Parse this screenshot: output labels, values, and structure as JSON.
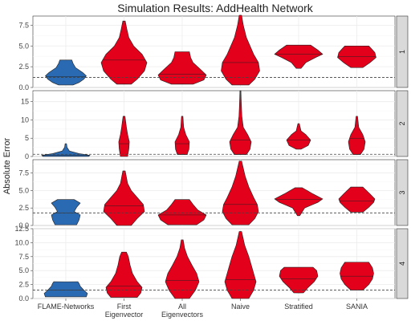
{
  "chart_data": {
    "type": "violin",
    "title": "Simulation Results: AddHealth Network",
    "ylabel": "Absolute Error",
    "xlabel": "",
    "categories": [
      "FLAME-Networks",
      "First Eigenvector",
      "All Eigenvectors",
      "Naive",
      "Stratified",
      "SANIA"
    ],
    "category_labels": [
      [
        "FLAME-Networks"
      ],
      [
        "First",
        "Eigenvector"
      ],
      [
        "All",
        "Eigenvectors"
      ],
      [
        "Naive"
      ],
      [
        "Stratified"
      ],
      [
        "SANIA"
      ]
    ],
    "colors": {
      "blue": "#2a6ab3",
      "red": "#e3001b",
      "strip": "#d9d9d9"
    },
    "panels": [
      {
        "label": "1",
        "ylim": [
          0,
          8.6
        ],
        "yticks": [
          0.0,
          2.5,
          5.0,
          7.5
        ],
        "ytick_labels": [
          "0.0",
          "2.5",
          "5.0",
          "7.5"
        ],
        "reference": 1.2,
        "violins": [
          {
            "category": "FLAME-Networks",
            "color": "blue",
            "min": 0.3,
            "max": 3.3,
            "median": 1.3,
            "shape": [
              [
                0.3,
                0.3
              ],
              [
                0.6,
                0.55
              ],
              [
                1.0,
                0.75
              ],
              [
                1.4,
                0.85
              ],
              [
                1.8,
                0.7
              ],
              [
                2.4,
                0.4
              ],
              [
                2.9,
                0.3
              ],
              [
                3.3,
                0.25
              ]
            ]
          },
          {
            "category": "First Eigenvector",
            "color": "red",
            "min": 0.4,
            "max": 8.0,
            "median": 3.3,
            "shape": [
              [
                0.4,
                0.3
              ],
              [
                1.0,
                0.55
              ],
              [
                2.0,
                0.85
              ],
              [
                3.0,
                0.95
              ],
              [
                4.0,
                0.75
              ],
              [
                5.0,
                0.4
              ],
              [
                6.0,
                0.2
              ],
              [
                7.0,
                0.12
              ],
              [
                8.0,
                0.05
              ]
            ]
          },
          {
            "category": "All Eigenvectors",
            "color": "red",
            "min": 0.4,
            "max": 4.3,
            "median": 1.6,
            "shape": [
              [
                0.4,
                0.45
              ],
              [
                0.9,
                0.9
              ],
              [
                1.5,
                1.0
              ],
              [
                2.2,
                0.75
              ],
              [
                3.0,
                0.45
              ],
              [
                3.6,
                0.35
              ],
              [
                4.3,
                0.3
              ]
            ]
          },
          {
            "category": "Naive",
            "color": "red",
            "min": 0.3,
            "max": 8.7,
            "median": 3.0,
            "shape": [
              [
                0.3,
                0.35
              ],
              [
                1.0,
                0.6
              ],
              [
                2.0,
                0.8
              ],
              [
                3.0,
                0.75
              ],
              [
                4.0,
                0.55
              ],
              [
                5.0,
                0.4
              ],
              [
                6.0,
                0.25
              ],
              [
                7.5,
                0.12
              ],
              [
                8.7,
                0.05
              ]
            ]
          },
          {
            "category": "Stratified",
            "color": "red",
            "min": 2.3,
            "max": 5.1,
            "median": 4.0,
            "shape": [
              [
                2.3,
                0.1
              ],
              [
                3.0,
                0.3
              ],
              [
                3.6,
                0.7
              ],
              [
                4.0,
                1.0
              ],
              [
                4.5,
                0.8
              ],
              [
                5.1,
                0.5
              ]
            ]
          },
          {
            "category": "SANIA",
            "color": "red",
            "min": 2.4,
            "max": 5.0,
            "median": 3.7,
            "shape": [
              [
                2.4,
                0.25
              ],
              [
                3.0,
                0.55
              ],
              [
                3.6,
                0.8
              ],
              [
                4.2,
                0.75
              ],
              [
                4.7,
                0.6
              ],
              [
                5.0,
                0.5
              ]
            ]
          }
        ]
      },
      {
        "label": "2",
        "ylim": [
          0,
          18
        ],
        "yticks": [
          0,
          5,
          10,
          15
        ],
        "ytick_labels": [
          "0",
          "5",
          "10",
          "15"
        ],
        "reference": 0.6,
        "violins": [
          {
            "category": "FLAME-Networks",
            "color": "blue",
            "min": 0.0,
            "max": 3.5,
            "median": 0.3,
            "shape": [
              [
                0.0,
                0.95
              ],
              [
                0.3,
                1.0
              ],
              [
                0.8,
                0.55
              ],
              [
                1.5,
                0.15
              ],
              [
                2.5,
                0.05
              ],
              [
                3.5,
                0.03
              ]
            ]
          },
          {
            "category": "First Eigenvector",
            "color": "red",
            "min": 0.0,
            "max": 11.0,
            "median": 3.5,
            "shape": [
              [
                0.0,
                0.15
              ],
              [
                2.0,
                0.2
              ],
              [
                4.0,
                0.22
              ],
              [
                6.0,
                0.15
              ],
              [
                8.0,
                0.1
              ],
              [
                11.0,
                0.04
              ]
            ]
          },
          {
            "category": "All Eigenvectors",
            "color": "red",
            "min": 0.5,
            "max": 11.0,
            "median": 3.5,
            "shape": [
              [
                0.5,
                0.2
              ],
              [
                2.0,
                0.28
              ],
              [
                4.0,
                0.3
              ],
              [
                6.0,
                0.15
              ],
              [
                8.0,
                0.06
              ],
              [
                11.0,
                0.03
              ]
            ]
          },
          {
            "category": "Naive",
            "color": "red",
            "min": 0.5,
            "max": 18.0,
            "median": 4.5,
            "shape": [
              [
                0.5,
                0.25
              ],
              [
                2.0,
                0.4
              ],
              [
                4.0,
                0.45
              ],
              [
                6.0,
                0.3
              ],
              [
                8.0,
                0.12
              ],
              [
                11.0,
                0.06
              ],
              [
                14.0,
                0.04
              ],
              [
                18.0,
                0.02
              ]
            ]
          },
          {
            "category": "Stratified",
            "color": "red",
            "min": 2.0,
            "max": 9.0,
            "median": 4.5,
            "shape": [
              [
                2.0,
                0.1
              ],
              [
                3.0,
                0.4
              ],
              [
                4.5,
                0.5
              ],
              [
                6.0,
                0.3
              ],
              [
                7.0,
                0.1
              ],
              [
                9.0,
                0.03
              ]
            ]
          },
          {
            "category": "SANIA",
            "color": "red",
            "min": 0.5,
            "max": 11.0,
            "median": 5.0,
            "shape": [
              [
                0.5,
                0.15
              ],
              [
                2.0,
                0.3
              ],
              [
                4.0,
                0.35
              ],
              [
                6.0,
                0.25
              ],
              [
                8.0,
                0.08
              ],
              [
                11.0,
                0.03
              ]
            ]
          }
        ]
      },
      {
        "label": "3",
        "ylim": [
          0,
          9.4
        ],
        "yticks": [
          0.0,
          2.5,
          5.0,
          7.5
        ],
        "ytick_labels": [
          "0.0",
          "2.5",
          "5.0",
          "7.5"
        ],
        "reference": 1.8,
        "violins": [
          {
            "category": "FLAME-Networks",
            "color": "blue",
            "min": 0.1,
            "max": 3.7,
            "median": 1.8,
            "shape": [
              [
                0.1,
                0.45
              ],
              [
                0.8,
                0.55
              ],
              [
                1.5,
                0.6
              ],
              [
                2.0,
                0.35
              ],
              [
                2.6,
                0.45
              ],
              [
                3.2,
                0.6
              ],
              [
                3.7,
                0.35
              ]
            ]
          },
          {
            "category": "First Eigenvector",
            "color": "red",
            "min": 0.0,
            "max": 7.8,
            "median": 2.8,
            "shape": [
              [
                0.0,
                0.3
              ],
              [
                1.0,
                0.55
              ],
              [
                2.0,
                0.85
              ],
              [
                3.0,
                0.8
              ],
              [
                4.0,
                0.55
              ],
              [
                5.0,
                0.3
              ],
              [
                6.0,
                0.15
              ],
              [
                7.8,
                0.05
              ]
            ]
          },
          {
            "category": "All Eigenvectors",
            "color": "red",
            "min": 0.1,
            "max": 3.7,
            "median": 1.5,
            "shape": [
              [
                0.1,
                0.6
              ],
              [
                0.8,
                0.9
              ],
              [
                1.5,
                1.0
              ],
              [
                2.2,
                0.65
              ],
              [
                3.0,
                0.45
              ],
              [
                3.7,
                0.3
              ]
            ]
          },
          {
            "category": "Naive",
            "color": "red",
            "min": 0.1,
            "max": 9.2,
            "median": 3.0,
            "shape": [
              [
                0.1,
                0.35
              ],
              [
                1.0,
                0.6
              ],
              [
                2.0,
                0.75
              ],
              [
                3.0,
                0.7
              ],
              [
                4.0,
                0.55
              ],
              [
                5.5,
                0.35
              ],
              [
                7.0,
                0.2
              ],
              [
                9.2,
                0.05
              ]
            ]
          },
          {
            "category": "Stratified",
            "color": "red",
            "min": 1.4,
            "max": 5.4,
            "median": 3.7,
            "shape": [
              [
                1.4,
                0.05
              ],
              [
                2.5,
                0.25
              ],
              [
                3.3,
                0.8
              ],
              [
                3.8,
                1.0
              ],
              [
                4.5,
                0.6
              ],
              [
                5.4,
                0.15
              ]
            ]
          },
          {
            "category": "SANIA",
            "color": "red",
            "min": 1.9,
            "max": 5.5,
            "median": 3.5,
            "shape": [
              [
                1.9,
                0.25
              ],
              [
                2.6,
                0.5
              ],
              [
                3.3,
                0.7
              ],
              [
                3.8,
                0.75
              ],
              [
                4.5,
                0.55
              ],
              [
                5.5,
                0.25
              ]
            ]
          }
        ]
      },
      {
        "label": "4",
        "ylim": [
          0,
          12.5
        ],
        "yticks": [
          0.0,
          2.5,
          5.0,
          7.5,
          10.0,
          12.5
        ],
        "ytick_labels": [
          "0.0",
          "2.5",
          "5.0",
          "7.5",
          "10.0",
          "12.5"
        ],
        "reference": 1.5,
        "violins": [
          {
            "category": "FLAME-Networks",
            "color": "blue",
            "min": 0.3,
            "max": 3.0,
            "median": 1.5,
            "shape": [
              [
                0.3,
                0.85
              ],
              [
                0.9,
                0.9
              ],
              [
                1.5,
                0.75
              ],
              [
                2.2,
                0.6
              ],
              [
                2.7,
                0.55
              ],
              [
                3.0,
                0.5
              ]
            ]
          },
          {
            "category": "First Eigenvector",
            "color": "red",
            "min": 0.2,
            "max": 8.3,
            "median": 2.2,
            "shape": [
              [
                0.2,
                0.55
              ],
              [
                1.0,
                0.7
              ],
              [
                2.0,
                0.75
              ],
              [
                3.0,
                0.55
              ],
              [
                4.5,
                0.35
              ],
              [
                6.0,
                0.25
              ],
              [
                7.5,
                0.18
              ],
              [
                8.3,
                0.1
              ]
            ]
          },
          {
            "category": "All Eigenvectors",
            "color": "red",
            "min": 0.0,
            "max": 10.5,
            "median": 3.2,
            "shape": [
              [
                0.0,
                0.3
              ],
              [
                1.5,
                0.55
              ],
              [
                3.0,
                0.7
              ],
              [
                4.5,
                0.6
              ],
              [
                6.0,
                0.4
              ],
              [
                7.5,
                0.22
              ],
              [
                9.0,
                0.1
              ],
              [
                10.5,
                0.04
              ]
            ]
          },
          {
            "category": "Naive",
            "color": "red",
            "min": 0.0,
            "max": 12.0,
            "median": 3.4,
            "shape": [
              [
                0.0,
                0.35
              ],
              [
                1.5,
                0.55
              ],
              [
                3.0,
                0.65
              ],
              [
                4.5,
                0.55
              ],
              [
                6.0,
                0.45
              ],
              [
                7.5,
                0.35
              ],
              [
                9.5,
                0.18
              ],
              [
                12.0,
                0.05
              ]
            ]
          },
          {
            "category": "Stratified",
            "color": "red",
            "min": 1.0,
            "max": 5.6,
            "median": 3.5,
            "shape": [
              [
                1.0,
                0.2
              ],
              [
                2.0,
                0.4
              ],
              [
                3.0,
                0.65
              ],
              [
                4.0,
                0.8
              ],
              [
                5.0,
                0.75
              ],
              [
                5.6,
                0.6
              ]
            ]
          },
          {
            "category": "SANIA",
            "color": "red",
            "min": 1.5,
            "max": 6.5,
            "median": 4.0,
            "shape": [
              [
                1.5,
                0.25
              ],
              [
                2.5,
                0.5
              ],
              [
                3.5,
                0.65
              ],
              [
                4.5,
                0.7
              ],
              [
                5.5,
                0.65
              ],
              [
                6.5,
                0.5
              ]
            ]
          }
        ]
      }
    ]
  }
}
